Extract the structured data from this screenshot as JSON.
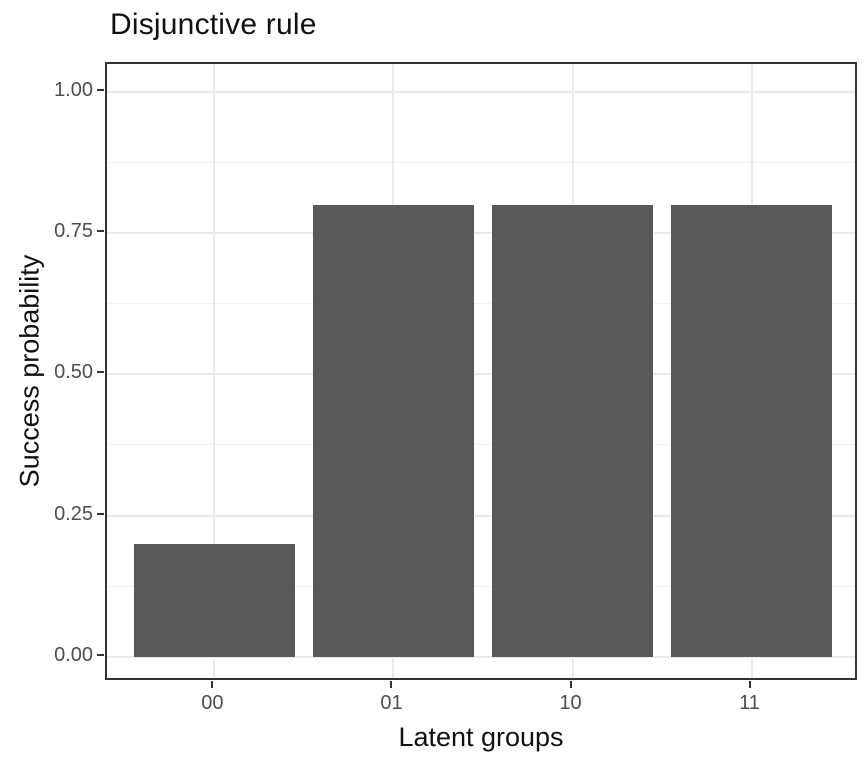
{
  "title": "Disjunctive rule",
  "chart_data": {
    "type": "bar",
    "title": "Disjunctive rule",
    "xlabel": "Latent groups",
    "ylabel": "Success probability",
    "categories": [
      "00",
      "01",
      "10",
      "11"
    ],
    "values": [
      0.2,
      0.8,
      0.8,
      0.8
    ],
    "ylim": [
      0,
      1
    ],
    "yticks": [
      0.0,
      0.25,
      0.5,
      0.75,
      1.0
    ],
    "ytick_labels": [
      "0.00",
      "0.25",
      "0.50",
      "0.75",
      "1.00"
    ],
    "yminor": [
      0.125,
      0.375,
      0.625,
      0.875
    ],
    "grid": "major-and-minor-horizontal, major-vertical-at-categories",
    "legend": "none",
    "style": {
      "bar_fill": "#595959",
      "panel_background": "#ffffff",
      "panel_border": "#333333",
      "grid_major_color": "#e9e9e9",
      "grid_minor_color": "#f3f3f3",
      "tick_mark_color": "#333333",
      "tick_label_color": "#4d4d4d",
      "title_color": "#111111",
      "bar_width_ratio": 0.9,
      "x_expand_units": 0.6,
      "y_expand_low": 0.045,
      "y_expand_high": 0.05
    }
  }
}
